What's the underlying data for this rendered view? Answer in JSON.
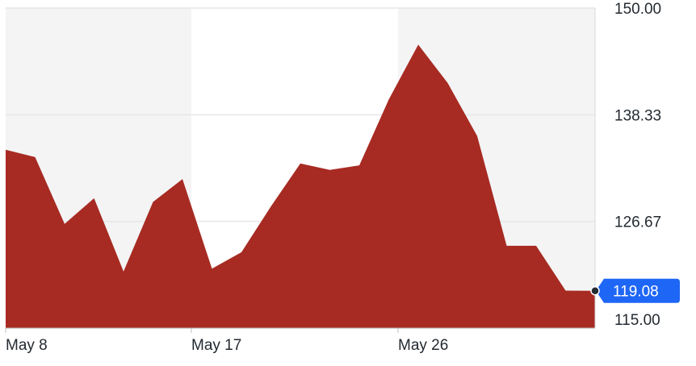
{
  "chart_data": {
    "type": "area",
    "title": "",
    "xlabel": "",
    "ylabel": "",
    "ylim": [
      115.0,
      150.0
    ],
    "y_ticks": [
      "150.00",
      "138.33",
      "126.67",
      "115.00"
    ],
    "x_ticks": [
      "May 8",
      "May 17",
      "May 26"
    ],
    "grid": true,
    "series": [
      {
        "values": [
          134.5,
          133.7,
          126.4,
          129.2,
          121.2,
          128.8,
          131.3,
          121.5,
          123.3,
          128.3,
          133.0,
          132.3,
          132.8,
          140.0,
          146.0,
          141.8,
          136.0,
          124.0,
          124.0,
          119.1,
          119.08
        ]
      }
    ],
    "last_value": "119.08",
    "colors": {
      "area": "#a72b22",
      "band": "#f4f4f5",
      "grid": "#e6e6e8",
      "marker": "#1e66f5",
      "text": "#232a31"
    }
  }
}
